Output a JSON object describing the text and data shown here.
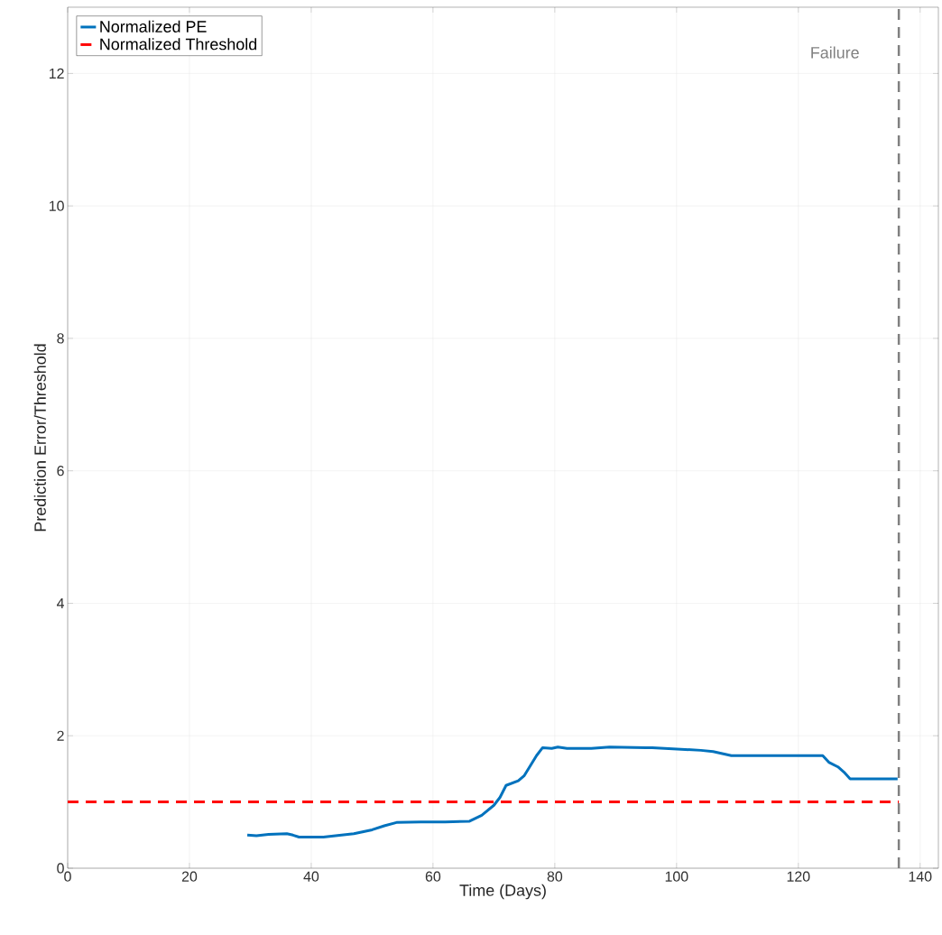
{
  "chart_data": {
    "type": "line",
    "xlabel": "Time (Days)",
    "ylabel": "Prediction Error/Threshold",
    "xlim": [
      0,
      143
    ],
    "ylim": [
      0,
      13
    ],
    "xticks": [
      0,
      20,
      40,
      60,
      80,
      100,
      120,
      140
    ],
    "yticks": [
      0,
      2,
      4,
      6,
      8,
      10,
      12
    ],
    "grid": true,
    "legend": "top left",
    "series": [
      {
        "name": "Normalized PE",
        "color": "#0072bd",
        "line_style": "solid",
        "x": [
          29.5,
          31,
          33,
          36,
          37,
          38,
          42,
          44,
          47,
          50,
          52,
          54,
          58,
          62,
          66,
          68,
          70,
          71,
          72,
          74,
          75,
          77,
          78,
          79.5,
          80.5,
          82,
          86,
          89,
          95,
          96,
          100,
          104,
          106,
          108,
          109,
          124,
          125,
          126.5,
          127.5,
          128.5,
          136.3
        ],
        "values": [
          0.5,
          0.49,
          0.51,
          0.52,
          0.5,
          0.47,
          0.47,
          0.49,
          0.52,
          0.58,
          0.64,
          0.69,
          0.7,
          0.7,
          0.71,
          0.8,
          0.95,
          1.07,
          1.25,
          1.32,
          1.4,
          1.7,
          1.82,
          1.81,
          1.83,
          1.81,
          1.81,
          1.83,
          1.82,
          1.82,
          1.8,
          1.78,
          1.76,
          1.72,
          1.7,
          1.7,
          1.6,
          1.53,
          1.45,
          1.35,
          1.35
        ]
      },
      {
        "name": "Normalized Threshold",
        "color": "#ff0000",
        "line_style": "dashed",
        "x": [
          0,
          136.5
        ],
        "values": [
          1,
          1
        ]
      }
    ],
    "ref_lines": [
      {
        "axis": "x",
        "value": 136.5,
        "label": "Failure",
        "color": "#808080",
        "line_style": "dashed"
      }
    ]
  }
}
